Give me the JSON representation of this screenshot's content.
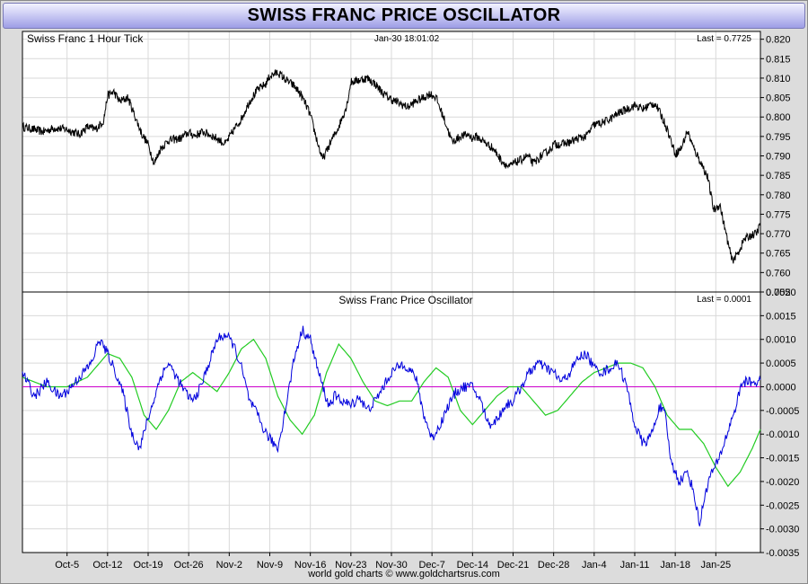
{
  "title": "SWISS FRANC PRICE OSCILLATOR",
  "footer": "world gold charts © www.goldchartsrus.com",
  "colors": {
    "price_line": "#000000",
    "oscillator_line": "#0000dd",
    "signal_line": "#22cc22",
    "zero_line": "#cc00cc",
    "grid": "#d9d9d9",
    "title_gradient": "#b4b4ee"
  },
  "chart_data": [
    {
      "type": "line",
      "title": "Swiss Franc 1 Hour Tick",
      "timestamp": "Jan-30  18:01:02",
      "last_label": "Last = 0.7725",
      "ylim": [
        0.755,
        0.822
      ],
      "yticks": [
        "0.755",
        "0.760",
        "0.765",
        "0.770",
        "0.775",
        "0.780",
        "0.785",
        "0.790",
        "0.795",
        "0.800",
        "0.805",
        "0.810",
        "0.815",
        "0.820"
      ],
      "x_range": [
        -1.1,
        17.1
      ],
      "grid": true,
      "series": [
        {
          "x": [
            -1.1,
            -0.9,
            -0.6,
            -0.3,
            0,
            0.3,
            0.5,
            0.7,
            0.9,
            1.0,
            1.15,
            1.3,
            1.5,
            1.7,
            1.85,
            2.0,
            2.15,
            2.3,
            2.5,
            2.8,
            3.0,
            3.15,
            3.35,
            3.5,
            3.7,
            3.9,
            4.1,
            4.3,
            4.5,
            4.7,
            4.9,
            5.0,
            5.2,
            5.4,
            5.6,
            5.75,
            5.9,
            6.0,
            6.15,
            6.3,
            6.5,
            6.7,
            6.9,
            7.0,
            7.2,
            7.4,
            7.6,
            7.8,
            8.0,
            8.2,
            8.4,
            8.6,
            8.8,
            8.95,
            9.1,
            9.3,
            9.5,
            9.7,
            9.9,
            10.0,
            10.1,
            10.3,
            10.5,
            10.7,
            10.9,
            11.0,
            11.2,
            11.35,
            11.5,
            11.7,
            11.9,
            12.0,
            12.2,
            12.4,
            12.6,
            12.8,
            13.0,
            13.2,
            13.4,
            13.6,
            13.8,
            14.0,
            14.2,
            14.35,
            14.5,
            14.65,
            14.8,
            15.0,
            15.15,
            15.3,
            15.45,
            15.6,
            15.8,
            15.95,
            16.1,
            16.25,
            16.4,
            16.55,
            16.7,
            16.85,
            17.0,
            17.1
          ],
          "values": [
            0.7975,
            0.797,
            0.7962,
            0.7972,
            0.7968,
            0.7955,
            0.7975,
            0.7968,
            0.799,
            0.8055,
            0.8065,
            0.804,
            0.805,
            0.7995,
            0.7955,
            0.793,
            0.788,
            0.7918,
            0.794,
            0.7945,
            0.796,
            0.7952,
            0.7962,
            0.7955,
            0.7945,
            0.793,
            0.7965,
            0.7995,
            0.804,
            0.807,
            0.8085,
            0.8105,
            0.8115,
            0.8095,
            0.808,
            0.806,
            0.803,
            0.8005,
            0.7945,
            0.789,
            0.7935,
            0.7975,
            0.803,
            0.809,
            0.8095,
            0.81,
            0.8085,
            0.806,
            0.8045,
            0.8035,
            0.8025,
            0.804,
            0.805,
            0.806,
            0.805,
            0.7995,
            0.7935,
            0.795,
            0.7955,
            0.7945,
            0.795,
            0.7935,
            0.792,
            0.789,
            0.787,
            0.788,
            0.789,
            0.79,
            0.788,
            0.79,
            0.7915,
            0.793,
            0.793,
            0.7935,
            0.7945,
            0.795,
            0.798,
            0.7985,
            0.7995,
            0.801,
            0.802,
            0.803,
            0.802,
            0.803,
            0.8035,
            0.8005,
            0.797,
            0.7905,
            0.792,
            0.7965,
            0.792,
            0.789,
            0.7845,
            0.776,
            0.7775,
            0.77,
            0.763,
            0.765,
            0.7685,
            0.7695,
            0.77,
            0.7725
          ]
        }
      ]
    },
    {
      "type": "line",
      "title": "Swiss Franc Price Oscillator",
      "last_label": "Last = 0.0001",
      "ylim": [
        -0.0035,
        0.002
      ],
      "yticks": [
        "-0.0035",
        "-0.0030",
        "-0.0025",
        "-0.0020",
        "-0.0015",
        "-0.0010",
        "-0.0005",
        "0.0000",
        "0.0005",
        "0.0010",
        "0.0015",
        "0.0020"
      ],
      "x_range": [
        -1.1,
        17.1
      ],
      "xticks": [
        "Oct-5",
        "Oct-12",
        "Oct-19",
        "Oct-26",
        "Nov-2",
        "Nov-9",
        "Nov-16",
        "Nov-23",
        "Nov-30",
        "Dec-7",
        "Dec-14",
        "Dec-21",
        "Dec-28",
        "Jan-4",
        "Jan-11",
        "Jan-18",
        "Jan-25"
      ],
      "grid": true,
      "series": [
        {
          "x": [
            -1.1,
            -0.8,
            -0.5,
            -0.2,
            0,
            0.3,
            0.6,
            0.8,
            1.0,
            1.2,
            1.4,
            1.6,
            1.8,
            1.95,
            2.1,
            2.3,
            2.5,
            2.7,
            2.9,
            3.1,
            3.3,
            3.5,
            3.7,
            3.9,
            4.1,
            4.3,
            4.5,
            4.7,
            4.85,
            5.0,
            5.2,
            5.4,
            5.6,
            5.8,
            6.0,
            6.2,
            6.45,
            6.6,
            6.8,
            7.0,
            7.2,
            7.4,
            7.6,
            7.8,
            8.0,
            8.3,
            8.6,
            8.8,
            9.0,
            9.2,
            9.4,
            9.6,
            9.8,
            10.0,
            10.2,
            10.4,
            10.6,
            10.8,
            11.0,
            11.2,
            11.4,
            11.6,
            11.8,
            12.0,
            12.2,
            12.4,
            12.6,
            12.8,
            13.0,
            13.2,
            13.4,
            13.6,
            13.8,
            14.0,
            14.2,
            14.35,
            14.5,
            14.6,
            14.75,
            14.9,
            15.1,
            15.3,
            15.45,
            15.6,
            15.75,
            15.9,
            16.05,
            16.2,
            16.35,
            16.5,
            16.65,
            16.8,
            16.95,
            17.1
          ],
          "values": [
            0.0003,
            -0.0002,
            0.0001,
            -0.0002,
            -0.0001,
            0.0002,
            0.0005,
            0.001,
            0.0007,
            0.0003,
            -0.0002,
            -0.001,
            -0.0013,
            -0.0008,
            -0.0004,
            0.0002,
            0.0005,
            0.0002,
            -0.0001,
            -0.0003,
            0.0,
            0.0005,
            0.001,
            0.0011,
            0.0009,
            0.0004,
            -0.0003,
            -0.0006,
            -0.0009,
            -0.0011,
            -0.0013,
            -0.0004,
            0.0006,
            0.0012,
            0.001,
            0.0003,
            -0.0004,
            -0.0002,
            -0.0003,
            -0.0004,
            -0.0002,
            -0.0005,
            -0.0003,
            0.0,
            0.0003,
            0.0005,
            0.0002,
            -0.0006,
            -0.0011,
            -0.0008,
            -0.0004,
            -0.0001,
            0.0,
            0.0,
            -0.0003,
            -0.0008,
            -0.0007,
            -0.0004,
            -0.0003,
            0.0,
            0.0003,
            0.0005,
            0.0004,
            0.0003,
            0.0001,
            0.0003,
            0.0006,
            0.0007,
            0.0004,
            0.0003,
            0.0004,
            0.0005,
            0.0,
            -0.0008,
            -0.0012,
            -0.0011,
            -0.0008,
            -0.0004,
            -0.0006,
            -0.0016,
            -0.002,
            -0.0018,
            -0.0022,
            -0.0029,
            -0.0022,
            -0.0018,
            -0.0016,
            -0.0012,
            -0.0008,
            -0.0004,
            0.0001,
            0.0001,
            0.0001,
            0.0001
          ]
        },
        {
          "x": [
            -1.1,
            -0.5,
            0,
            0.5,
            1.0,
            1.3,
            1.6,
            1.9,
            2.2,
            2.5,
            2.8,
            3.1,
            3.4,
            3.7,
            4.0,
            4.3,
            4.6,
            4.9,
            5.2,
            5.5,
            5.8,
            6.1,
            6.4,
            6.7,
            7.0,
            7.3,
            7.6,
            7.9,
            8.2,
            8.5,
            8.8,
            9.1,
            9.4,
            9.7,
            10.0,
            10.3,
            10.6,
            10.9,
            11.2,
            11.5,
            11.8,
            12.1,
            12.4,
            12.7,
            13.0,
            13.3,
            13.6,
            13.9,
            14.2,
            14.5,
            14.8,
            15.1,
            15.4,
            15.7,
            16.0,
            16.3,
            16.6,
            16.9,
            17.1
          ],
          "values": [
            0.0002,
            0.0,
            0.0,
            0.0002,
            0.0007,
            0.0006,
            0.0002,
            -0.0006,
            -0.0009,
            -0.0005,
            0.0001,
            0.0003,
            0.0001,
            -0.0001,
            0.0003,
            0.0008,
            0.001,
            0.0006,
            -0.0002,
            -0.0007,
            -0.001,
            -0.0006,
            0.0003,
            0.0009,
            0.0006,
            0.0001,
            -0.0003,
            -0.0004,
            -0.0003,
            -0.0003,
            0.0001,
            0.0004,
            0.0002,
            -0.0005,
            -0.0008,
            -0.0005,
            -0.0002,
            0.0,
            0.0,
            -0.0003,
            -0.0006,
            -0.0005,
            -0.0002,
            0.0001,
            0.0003,
            0.0004,
            0.0005,
            0.0005,
            0.0004,
            0.0,
            -0.0006,
            -0.0009,
            -0.0009,
            -0.0012,
            -0.0017,
            -0.0021,
            -0.0018,
            -0.0013,
            -0.0009
          ]
        }
      ]
    }
  ]
}
